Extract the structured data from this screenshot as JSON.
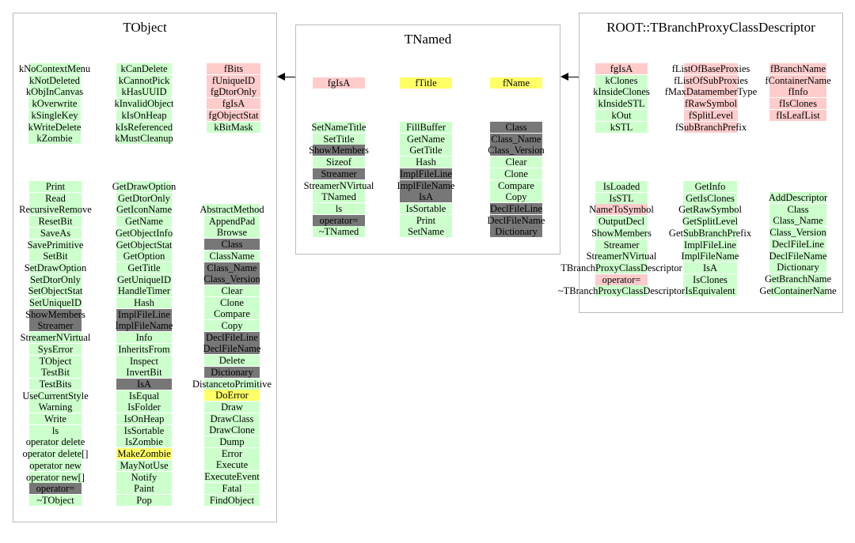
{
  "colors": {
    "green": "#ccffcc",
    "pink": "#ffcccc",
    "yellow": "#ffff66",
    "gray": "#777777"
  },
  "tobject": {
    "title": "TObject",
    "enum_left": [
      {
        "t": "kNoContextMenu",
        "c": "green"
      },
      {
        "t": "kNotDeleted",
        "c": "green"
      },
      {
        "t": "kObjInCanvas",
        "c": "green"
      },
      {
        "t": "kOverwrite",
        "c": "green"
      },
      {
        "t": "kSingleKey",
        "c": "green"
      },
      {
        "t": "kWriteDelete",
        "c": "green"
      },
      {
        "t": "kZombie",
        "c": "green"
      }
    ],
    "enum_mid": [
      {
        "t": "kCanDelete",
        "c": "green"
      },
      {
        "t": "kCannotPick",
        "c": "green"
      },
      {
        "t": "kHasUUID",
        "c": "green"
      },
      {
        "t": "kInvalidObject",
        "c": "green"
      },
      {
        "t": "kIsOnHeap",
        "c": "green"
      },
      {
        "t": "kIsReferenced",
        "c": "green"
      },
      {
        "t": "kMustCleanup",
        "c": "green"
      }
    ],
    "data_right": [
      {
        "t": "fBits",
        "c": "pink"
      },
      {
        "t": "fUniqueID",
        "c": "pink"
      },
      {
        "t": "fgDtorOnly",
        "c": "pink"
      },
      {
        "t": "fgIsA",
        "c": "pink"
      },
      {
        "t": "fgObjectStat",
        "c": "pink"
      },
      {
        "t": "kBitMask",
        "c": "green"
      }
    ],
    "methods_left": [
      {
        "t": "Print",
        "c": "green"
      },
      {
        "t": "Read",
        "c": "green"
      },
      {
        "t": "RecursiveRemove",
        "c": "green"
      },
      {
        "t": "ResetBit",
        "c": "green"
      },
      {
        "t": "SaveAs",
        "c": "green"
      },
      {
        "t": "SavePrimitive",
        "c": "green"
      },
      {
        "t": "SetBit",
        "c": "green"
      },
      {
        "t": "SetDrawOption",
        "c": "green"
      },
      {
        "t": "SetDtorOnly",
        "c": "green"
      },
      {
        "t": "SetObjectStat",
        "c": "green"
      },
      {
        "t": "SetUniqueID",
        "c": "green"
      },
      {
        "t": "ShowMembers",
        "c": "gray"
      },
      {
        "t": "Streamer",
        "c": "gray"
      },
      {
        "t": "StreamerNVirtual",
        "c": "green"
      },
      {
        "t": "SysError",
        "c": "green"
      },
      {
        "t": "TObject",
        "c": "green"
      },
      {
        "t": "TestBit",
        "c": "green"
      },
      {
        "t": "TestBits",
        "c": "green"
      },
      {
        "t": "UseCurrentStyle",
        "c": "green"
      },
      {
        "t": "Warning",
        "c": "green"
      },
      {
        "t": "Write",
        "c": "green"
      },
      {
        "t": "ls",
        "c": "green"
      },
      {
        "t": "operator delete",
        "c": "green"
      },
      {
        "t": "operator delete[]",
        "c": "green"
      },
      {
        "t": "operator new",
        "c": "green"
      },
      {
        "t": "operator new[]",
        "c": "green"
      },
      {
        "t": "operator=",
        "c": "gray"
      },
      {
        "t": "~TObject",
        "c": "green"
      }
    ],
    "methods_mid": [
      {
        "t": "GetDrawOption",
        "c": "green"
      },
      {
        "t": "GetDtorOnly",
        "c": "green"
      },
      {
        "t": "GetIconName",
        "c": "green"
      },
      {
        "t": "GetName",
        "c": "green"
      },
      {
        "t": "GetObjectInfo",
        "c": "green"
      },
      {
        "t": "GetObjectStat",
        "c": "green"
      },
      {
        "t": "GetOption",
        "c": "green"
      },
      {
        "t": "GetTitle",
        "c": "green"
      },
      {
        "t": "GetUniqueID",
        "c": "green"
      },
      {
        "t": "HandleTimer",
        "c": "green"
      },
      {
        "t": "Hash",
        "c": "green"
      },
      {
        "t": "ImplFileLine",
        "c": "gray"
      },
      {
        "t": "ImplFileName",
        "c": "gray"
      },
      {
        "t": "Info",
        "c": "green"
      },
      {
        "t": "InheritsFrom",
        "c": "green"
      },
      {
        "t": "Inspect",
        "c": "green"
      },
      {
        "t": "InvertBit",
        "c": "green"
      },
      {
        "t": "IsA",
        "c": "gray"
      },
      {
        "t": "IsEqual",
        "c": "green"
      },
      {
        "t": "IsFolder",
        "c": "green"
      },
      {
        "t": "IsOnHeap",
        "c": "green"
      },
      {
        "t": "IsSortable",
        "c": "green"
      },
      {
        "t": "IsZombie",
        "c": "green"
      },
      {
        "t": "MakeZombie",
        "c": "yellow"
      },
      {
        "t": "MayNotUse",
        "c": "green"
      },
      {
        "t": "Notify",
        "c": "green"
      },
      {
        "t": "Paint",
        "c": "green"
      },
      {
        "t": "Pop",
        "c": "green"
      }
    ],
    "methods_right": [
      {
        "t": "AbstractMethod",
        "c": "green"
      },
      {
        "t": "AppendPad",
        "c": "green"
      },
      {
        "t": "Browse",
        "c": "green"
      },
      {
        "t": "Class",
        "c": "gray"
      },
      {
        "t": "ClassName",
        "c": "green"
      },
      {
        "t": "Class_Name",
        "c": "gray"
      },
      {
        "t": "Class_Version",
        "c": "gray"
      },
      {
        "t": "Clear",
        "c": "green"
      },
      {
        "t": "Clone",
        "c": "green"
      },
      {
        "t": "Compare",
        "c": "green"
      },
      {
        "t": "Copy",
        "c": "green"
      },
      {
        "t": "DeclFileLine",
        "c": "gray"
      },
      {
        "t": "DeclFileName",
        "c": "gray"
      },
      {
        "t": "Delete",
        "c": "green"
      },
      {
        "t": "Dictionary",
        "c": "gray"
      },
      {
        "t": "DistancetoPrimitive",
        "c": "green"
      },
      {
        "t": "DoError",
        "c": "yellow"
      },
      {
        "t": "Draw",
        "c": "green"
      },
      {
        "t": "DrawClass",
        "c": "green"
      },
      {
        "t": "DrawClone",
        "c": "green"
      },
      {
        "t": "Dump",
        "c": "green"
      },
      {
        "t": "Error",
        "c": "green"
      },
      {
        "t": "Execute",
        "c": "green"
      },
      {
        "t": "ExecuteEvent",
        "c": "green"
      },
      {
        "t": "Fatal",
        "c": "green"
      },
      {
        "t": "FindObject",
        "c": "green"
      }
    ]
  },
  "tnamed": {
    "title": "TNamed",
    "data_left": [
      {
        "t": "fgIsA",
        "c": "pink"
      }
    ],
    "data_mid": [
      {
        "t": "fTitle",
        "c": "yellow"
      }
    ],
    "data_right": [
      {
        "t": "fName",
        "c": "yellow"
      }
    ],
    "methods_left": [
      {
        "t": "SetNameTitle",
        "c": "green"
      },
      {
        "t": "SetTitle",
        "c": "green"
      },
      {
        "t": "ShowMembers",
        "c": "gray"
      },
      {
        "t": "Sizeof",
        "c": "green"
      },
      {
        "t": "Streamer",
        "c": "gray"
      },
      {
        "t": "StreamerNVirtual",
        "c": "green"
      },
      {
        "t": "TNamed",
        "c": "green"
      },
      {
        "t": "ls",
        "c": "green"
      },
      {
        "t": "operator=",
        "c": "gray"
      },
      {
        "t": "~TNamed",
        "c": "green"
      }
    ],
    "methods_mid": [
      {
        "t": "FillBuffer",
        "c": "green"
      },
      {
        "t": "GetName",
        "c": "green"
      },
      {
        "t": "GetTitle",
        "c": "green"
      },
      {
        "t": "Hash",
        "c": "green"
      },
      {
        "t": "ImplFileLine",
        "c": "gray"
      },
      {
        "t": "ImplFileName",
        "c": "gray"
      },
      {
        "t": "IsA",
        "c": "gray"
      },
      {
        "t": "IsSortable",
        "c": "green"
      },
      {
        "t": "Print",
        "c": "green"
      },
      {
        "t": "SetName",
        "c": "green"
      }
    ],
    "methods_right": [
      {
        "t": "Class",
        "c": "gray"
      },
      {
        "t": "Class_Name",
        "c": "gray"
      },
      {
        "t": "Class_Version",
        "c": "gray"
      },
      {
        "t": "Clear",
        "c": "green"
      },
      {
        "t": "Clone",
        "c": "green"
      },
      {
        "t": "Compare",
        "c": "green"
      },
      {
        "t": "Copy",
        "c": "green"
      },
      {
        "t": "DeclFileLine",
        "c": "gray"
      },
      {
        "t": "DeclFileName",
        "c": "gray"
      },
      {
        "t": "Dictionary",
        "c": "gray"
      }
    ]
  },
  "descriptor": {
    "title": "ROOT::TBranchProxyClassDescriptor",
    "data_left": [
      {
        "t": "fgIsA",
        "c": "pink"
      },
      {
        "t": "kClones",
        "c": "green"
      },
      {
        "t": "kInsideClones",
        "c": "green"
      },
      {
        "t": "kInsideSTL",
        "c": "green"
      },
      {
        "t": "kOut",
        "c": "green"
      },
      {
        "t": "kSTL",
        "c": "green"
      }
    ],
    "data_mid": [
      {
        "t": "fListOfBaseProxies",
        "c": "pink"
      },
      {
        "t": "fListOfSubProxies",
        "c": "pink"
      },
      {
        "t": "fMaxDatamemberType",
        "c": "pink"
      },
      {
        "t": "fRawSymbol",
        "c": "pink"
      },
      {
        "t": "fSplitLevel",
        "c": "pink"
      },
      {
        "t": "fSubBranchPrefix",
        "c": "pink"
      }
    ],
    "data_right": [
      {
        "t": "fBranchName",
        "c": "pink"
      },
      {
        "t": "fContainerName",
        "c": "pink"
      },
      {
        "t": "fInfo",
        "c": "pink"
      },
      {
        "t": "fIsClones",
        "c": "pink"
      },
      {
        "t": "fIsLeafList",
        "c": "pink"
      }
    ],
    "methods_left": [
      {
        "t": "IsLoaded",
        "c": "green"
      },
      {
        "t": "IsSTL",
        "c": "green"
      },
      {
        "t": "NameToSymbol",
        "c": "pink"
      },
      {
        "t": "OutputDecl",
        "c": "green"
      },
      {
        "t": "ShowMembers",
        "c": "green"
      },
      {
        "t": "Streamer",
        "c": "green"
      },
      {
        "t": "StreamerNVirtual",
        "c": "green"
      },
      {
        "t": "TBranchProxyClassDescriptor",
        "c": "green"
      },
      {
        "t": "operator=",
        "c": "pink"
      },
      {
        "t": "~TBranchProxyClassDescriptor",
        "c": "green"
      }
    ],
    "methods_mid": [
      {
        "t": "GetInfo",
        "c": "green"
      },
      {
        "t": "GetIsClones",
        "c": "green"
      },
      {
        "t": "GetRawSymbol",
        "c": "green"
      },
      {
        "t": "GetSplitLevel",
        "c": "green"
      },
      {
        "t": "GetSubBranchPrefix",
        "c": "green"
      },
      {
        "t": "ImplFileLine",
        "c": "green"
      },
      {
        "t": "ImplFileName",
        "c": "green"
      },
      {
        "t": "IsA",
        "c": "green"
      },
      {
        "t": "IsClones",
        "c": "green"
      },
      {
        "t": "IsEquivalent",
        "c": "green"
      }
    ],
    "methods_right": [
      {
        "t": "AddDescriptor",
        "c": "green"
      },
      {
        "t": "Class",
        "c": "green"
      },
      {
        "t": "Class_Name",
        "c": "green"
      },
      {
        "t": "Class_Version",
        "c": "green"
      },
      {
        "t": "DeclFileLine",
        "c": "green"
      },
      {
        "t": "DeclFileName",
        "c": "green"
      },
      {
        "t": "Dictionary",
        "c": "green"
      },
      {
        "t": "GetBranchName",
        "c": "green"
      },
      {
        "t": "GetContainerName",
        "c": "green"
      }
    ]
  }
}
